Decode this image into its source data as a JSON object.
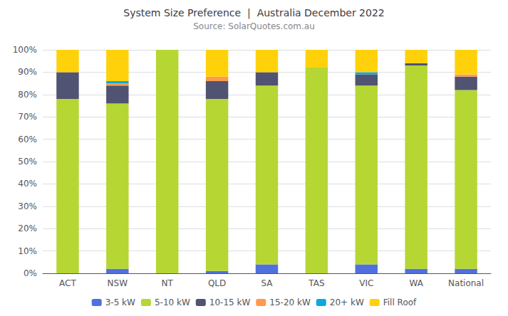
{
  "chart_data": {
    "type": "bar",
    "stacked": true,
    "title": "System Size Preference  |  Australia December 2022",
    "subtitle": "Source: SolarQuotes.com.au",
    "categories": [
      "ACT",
      "NSW",
      "NT",
      "QLD",
      "SA",
      "TAS",
      "VIC",
      "WA",
      "National"
    ],
    "series": [
      {
        "name": "3-5 kW",
        "values": [
          0,
          2,
          0,
          1,
          4,
          0,
          4,
          2,
          2
        ]
      },
      {
        "name": "5-10 kW",
        "values": [
          78,
          74,
          100,
          77,
          80,
          92,
          80,
          91,
          80
        ]
      },
      {
        "name": "10-15 kW",
        "values": [
          12,
          8,
          0,
          8,
          6,
          0,
          5,
          1,
          6
        ]
      },
      {
        "name": "15-20 kW",
        "values": [
          0,
          1,
          0,
          2,
          0,
          0,
          0,
          0,
          1
        ]
      },
      {
        "name": "20+ kW",
        "values": [
          0,
          1,
          0,
          0,
          0,
          0,
          1,
          0,
          0
        ]
      },
      {
        "name": "Fill Roof",
        "values": [
          10,
          14,
          0,
          12,
          10,
          8,
          10,
          6,
          11
        ]
      }
    ],
    "ylim": [
      0,
      100
    ],
    "yticks": [
      {
        "value": 0,
        "label": "0%"
      },
      {
        "value": 10,
        "label": "10%"
      },
      {
        "value": 20,
        "label": "20%"
      },
      {
        "value": 30,
        "label": "30%"
      },
      {
        "value": 40,
        "label": "40%"
      },
      {
        "value": 50,
        "label": "50%"
      },
      {
        "value": 60,
        "label": "60%"
      },
      {
        "value": 70,
        "label": "70%"
      },
      {
        "value": 80,
        "label": "80%"
      },
      {
        "value": 90,
        "label": "90%"
      },
      {
        "value": 100,
        "label": "100%"
      }
    ],
    "grid": true,
    "legend": "bottom"
  }
}
